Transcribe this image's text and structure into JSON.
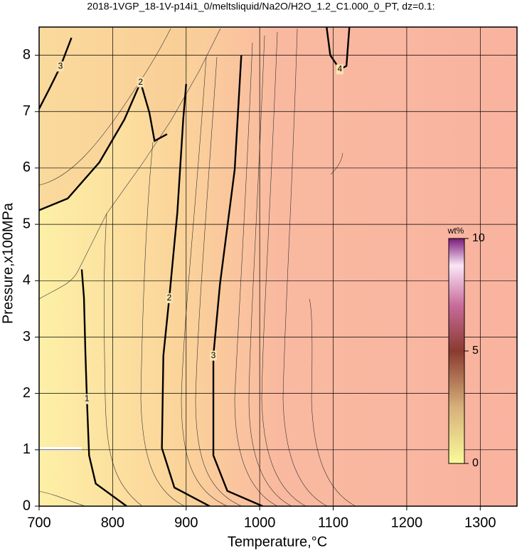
{
  "chart_data": {
    "type": "contour",
    "title": "2018-1VGP_18-1V-p14i1_0/meltsliquid/Na2O/H2O_1.2_C1.000_0_PT, dz=0.1:",
    "x_label": "Temperature,°C",
    "y_label": "Pressure,x100MPa",
    "xlim": [
      700,
      1350
    ],
    "xticks": [
      700,
      800,
      900,
      1000,
      1100,
      1200,
      1300
    ],
    "ylim": [
      0,
      8.5
    ],
    "yticks": [
      0,
      1,
      2,
      3,
      4,
      5,
      6,
      7,
      8
    ],
    "grid": true,
    "colorbar": {
      "label": "wt%",
      "lim": [
        0,
        10
      ],
      "ticks": [
        0,
        5,
        10
      ]
    },
    "contours": [
      {
        "level": 1,
        "x": [
          819,
          777,
          768,
          765,
          763,
          761,
          758
        ],
        "y": [
          0,
          0.4,
          0.9,
          1.9,
          2.7,
          3.7,
          4.2
        ]
      },
      {
        "level": 2,
        "x": [
          932,
          884,
          867,
          869,
          877,
          888,
          896,
          900
        ],
        "y": [
          0,
          0.33,
          1.03,
          2.67,
          3.69,
          5.21,
          6.86,
          7.49
        ]
      },
      {
        "level": 3,
        "x": [
          1004,
          956,
          937,
          937,
          946,
          966,
          975
        ],
        "y": [
          0,
          0.27,
          0.9,
          2.67,
          3.94,
          5.97,
          8.0
        ]
      },
      {
        "level": 3,
        "x": [
          700,
          715,
          729,
          744
        ],
        "y": [
          7.05,
          7.43,
          7.8,
          8.31
        ]
      },
      {
        "level": 2,
        "x": [
          700,
          739,
          782,
          816,
          838,
          850,
          857,
          874
        ],
        "y": [
          5.25,
          5.46,
          6.1,
          6.86,
          7.52,
          6.98,
          6.48,
          6.6
        ]
      },
      {
        "level": 4,
        "x": [
          1091,
          1096,
          1109,
          1118,
          1122
        ],
        "y": [
          8.5,
          8.0,
          7.75,
          7.81,
          8.5
        ]
      }
    ]
  }
}
